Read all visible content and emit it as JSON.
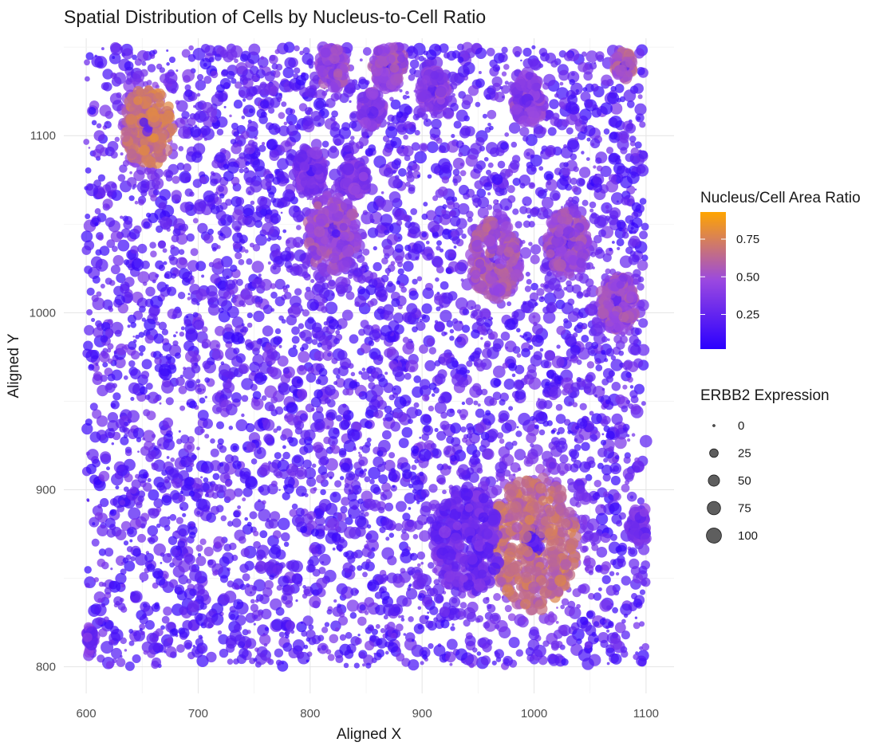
{
  "chart_data": {
    "type": "scatter",
    "title": "Spatial Distribution of Cells by Nucleus-to-Cell Ratio",
    "xlabel": "Aligned X",
    "ylabel": "Aligned Y",
    "xlim": [
      580,
      1125
    ],
    "ylim": [
      785,
      1155
    ],
    "x_ticks": [
      600,
      700,
      800,
      900,
      1000,
      1100
    ],
    "y_ticks": [
      800,
      900,
      1000,
      1100
    ],
    "x_tick_labels": [
      "600",
      "700",
      "800",
      "900",
      "1000",
      "1100"
    ],
    "y_tick_labels": [
      "800",
      "900",
      "1000",
      "1100"
    ],
    "grid": true,
    "point_extent": {
      "x": [
        600,
        1100
      ],
      "y": [
        800,
        1150
      ]
    },
    "color_legend": {
      "title": "Nucleus/Cell Area Ratio",
      "range": [
        0.02,
        0.93
      ],
      "ticks": [
        0.25,
        0.5,
        0.75
      ],
      "tick_labels": [
        "0.25",
        "0.50",
        "0.75"
      ],
      "low_color": "#2B00FF",
      "mid_color": "#9A48E0",
      "high_color": "#FFA500"
    },
    "size_legend": {
      "title": "ERBB2 Expression",
      "values": [
        0,
        25,
        50,
        75,
        100
      ],
      "labels": [
        "0",
        "25",
        "50",
        "75",
        "100"
      ]
    },
    "hotspots": [
      {
        "x": 655,
        "y": 1105,
        "ratio": 0.82,
        "radius": 22
      },
      {
        "x": 1000,
        "y": 870,
        "ratio": 0.78,
        "radius": 38
      },
      {
        "x": 820,
        "y": 1045,
        "ratio": 0.62,
        "radius": 22
      },
      {
        "x": 965,
        "y": 1030,
        "ratio": 0.66,
        "radius": 22
      },
      {
        "x": 1030,
        "y": 1040,
        "ratio": 0.6,
        "radius": 18
      },
      {
        "x": 1075,
        "y": 1005,
        "ratio": 0.6,
        "radius": 16
      },
      {
        "x": 870,
        "y": 1140,
        "ratio": 0.6,
        "radius": 14
      },
      {
        "x": 820,
        "y": 1138,
        "ratio": 0.6,
        "radius": 12
      },
      {
        "x": 995,
        "y": 1120,
        "ratio": 0.55,
        "radius": 14
      },
      {
        "x": 910,
        "y": 1125,
        "ratio": 0.55,
        "radius": 12
      },
      {
        "x": 855,
        "y": 1115,
        "ratio": 0.55,
        "radius": 10
      },
      {
        "x": 800,
        "y": 1080,
        "ratio": 0.5,
        "radius": 12
      },
      {
        "x": 840,
        "y": 1075,
        "ratio": 0.5,
        "radius": 10
      },
      {
        "x": 1080,
        "y": 1140,
        "ratio": 0.7,
        "radius": 8
      },
      {
        "x": 1095,
        "y": 880,
        "ratio": 0.45,
        "radius": 10
      },
      {
        "x": 940,
        "y": 870,
        "ratio": 0.42,
        "radius": 30
      },
      {
        "x": 600,
        "y": 815,
        "ratio": 0.45,
        "radius": 8
      }
    ]
  }
}
